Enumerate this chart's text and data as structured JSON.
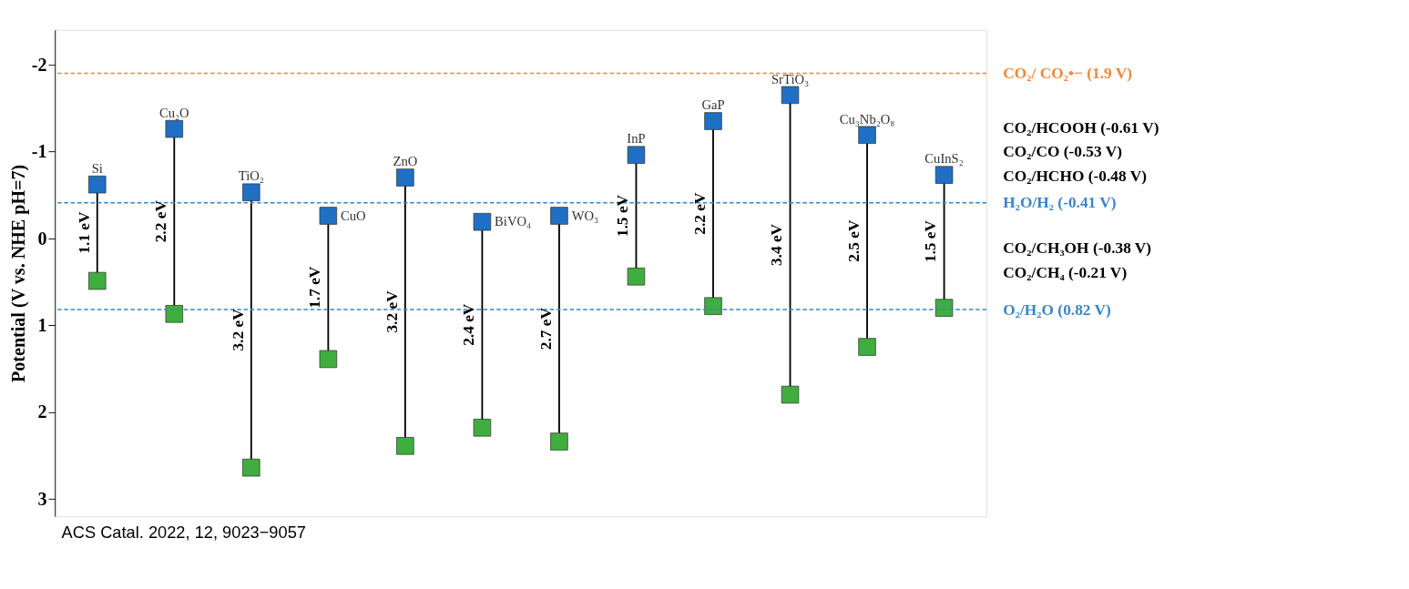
{
  "chart_data": {
    "type": "scatter",
    "ylabel": "Potential  (V vs. NHE pH=7)",
    "categories": [
      "Si",
      "Cu₂O",
      "TiO₂",
      "CuO",
      "ZnO",
      "BiVO₄",
      "WO₃",
      "InP",
      "GaP",
      "SrTiO₃",
      "Cu₃Nb₂O₈",
      "CuInS₂"
    ],
    "series": [
      {
        "color": "#1f6fc5",
        "marker": "square",
        "values": [
          -0.62,
          -1.26,
          -0.53,
          -0.26,
          -0.7,
          -0.19,
          -0.26,
          -0.96,
          -1.35,
          -1.65,
          -1.19,
          -0.73
        ]
      },
      {
        "color": "#3fae3f",
        "marker": "square",
        "values": [
          0.49,
          0.87,
          2.64,
          1.39,
          2.39,
          2.18,
          2.34,
          0.44,
          0.78,
          1.8,
          1.25,
          0.8
        ]
      }
    ],
    "ylim": [
      3.2,
      -2.4
    ],
    "yticks": [
      -2,
      -1,
      0,
      1,
      2,
      3
    ],
    "grid": false,
    "tick_labels": "y",
    "ref_lines": [
      {
        "axis": "y",
        "value": -1.9,
        "label": "CO₂/ CO₂•− (1.9 V)",
        "color": "#f0883a",
        "line_style": "dashed"
      },
      {
        "axis": "y",
        "value": -0.41,
        "label": "H₂O/H₂ (-0.41 V)",
        "color": "#3d85c6",
        "line_style": "dashed"
      },
      {
        "axis": "y",
        "value": 0.82,
        "label": "O₂/H₂O (0.82 V)",
        "color": "#3d85c6",
        "line_style": "dashed"
      }
    ],
    "annotations": [
      "CO₂/HCOOH (-0.61 V)",
      "CO₂/CO (-0.53 V)",
      "CO₂/HCHO (-0.48 V)",
      "CO₂/CH₃OH (-0.38 V)",
      "CO₂/CH₄ (-0.21 V)",
      "ACS Catal. 2022, 12, 9023−9057",
      "1.1 eV",
      "2.2 eV",
      "3.2 eV",
      "1.7 eV",
      "3.2 eV",
      "2.4 eV",
      "2.7 eV",
      "1.5 eV",
      "2.2 eV",
      "3.4 eV",
      "2.5 eV",
      "1.5 eV"
    ]
  }
}
